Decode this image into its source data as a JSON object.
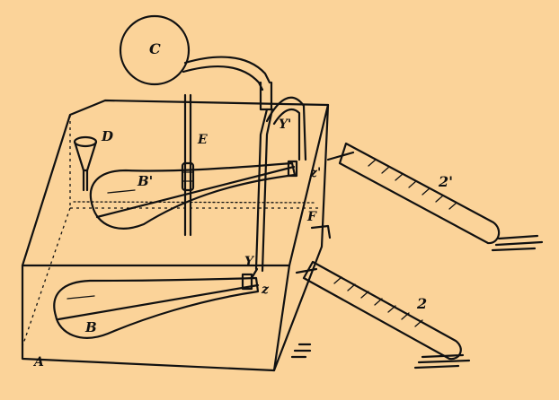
{
  "labels": {
    "C": "C",
    "D": "D",
    "E": "E",
    "B_prime": "B'",
    "B": "B",
    "Y_prime": "Y'",
    "Y": "Y",
    "Z_prime": "z'",
    "Z": "z",
    "F": "F",
    "tube_upper": "2'",
    "tube_lower": "2",
    "A": "A"
  }
}
